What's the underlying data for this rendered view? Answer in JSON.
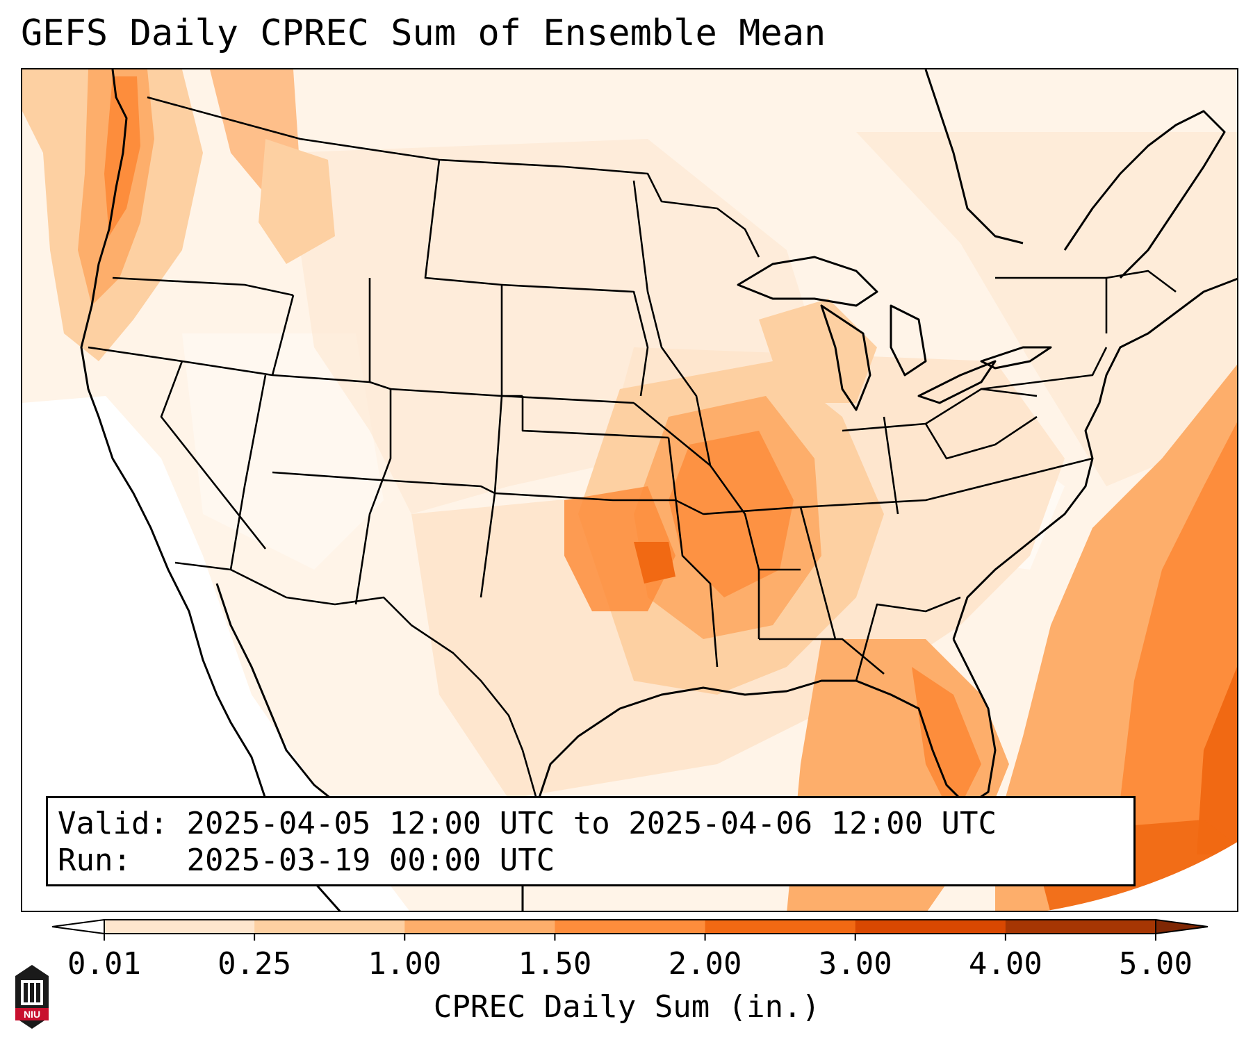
{
  "title": "GEFS Daily CPREC Sum of Ensemble Mean",
  "info": {
    "valid_label": "Valid:",
    "valid_value": "2025-04-05 12:00 UTC to 2025-04-06 12:00 UTC",
    "run_label": "Run:",
    "run_value": "2025-03-19 00:00 UTC"
  },
  "colorbar": {
    "label": "CPREC Daily Sum (in.)",
    "ticks": [
      "0.01",
      "0.25",
      "1.00",
      "1.50",
      "2.00",
      "3.00",
      "4.00",
      "5.00"
    ],
    "colors": [
      "#fff5eb",
      "#fee6ce",
      "#fdd0a2",
      "#fdae6b",
      "#fd8d3c",
      "#f16913",
      "#d94801",
      "#a63603"
    ],
    "under_color": "#ffffff",
    "over_color": "#7f2704"
  },
  "logo": {
    "text": "NIU",
    "color": "#c8102e"
  },
  "map": {
    "projection": "Lambert Conformal (CONUS)",
    "layers": [
      "precipitation-field",
      "coastlines",
      "state-borders",
      "country-borders"
    ]
  }
}
